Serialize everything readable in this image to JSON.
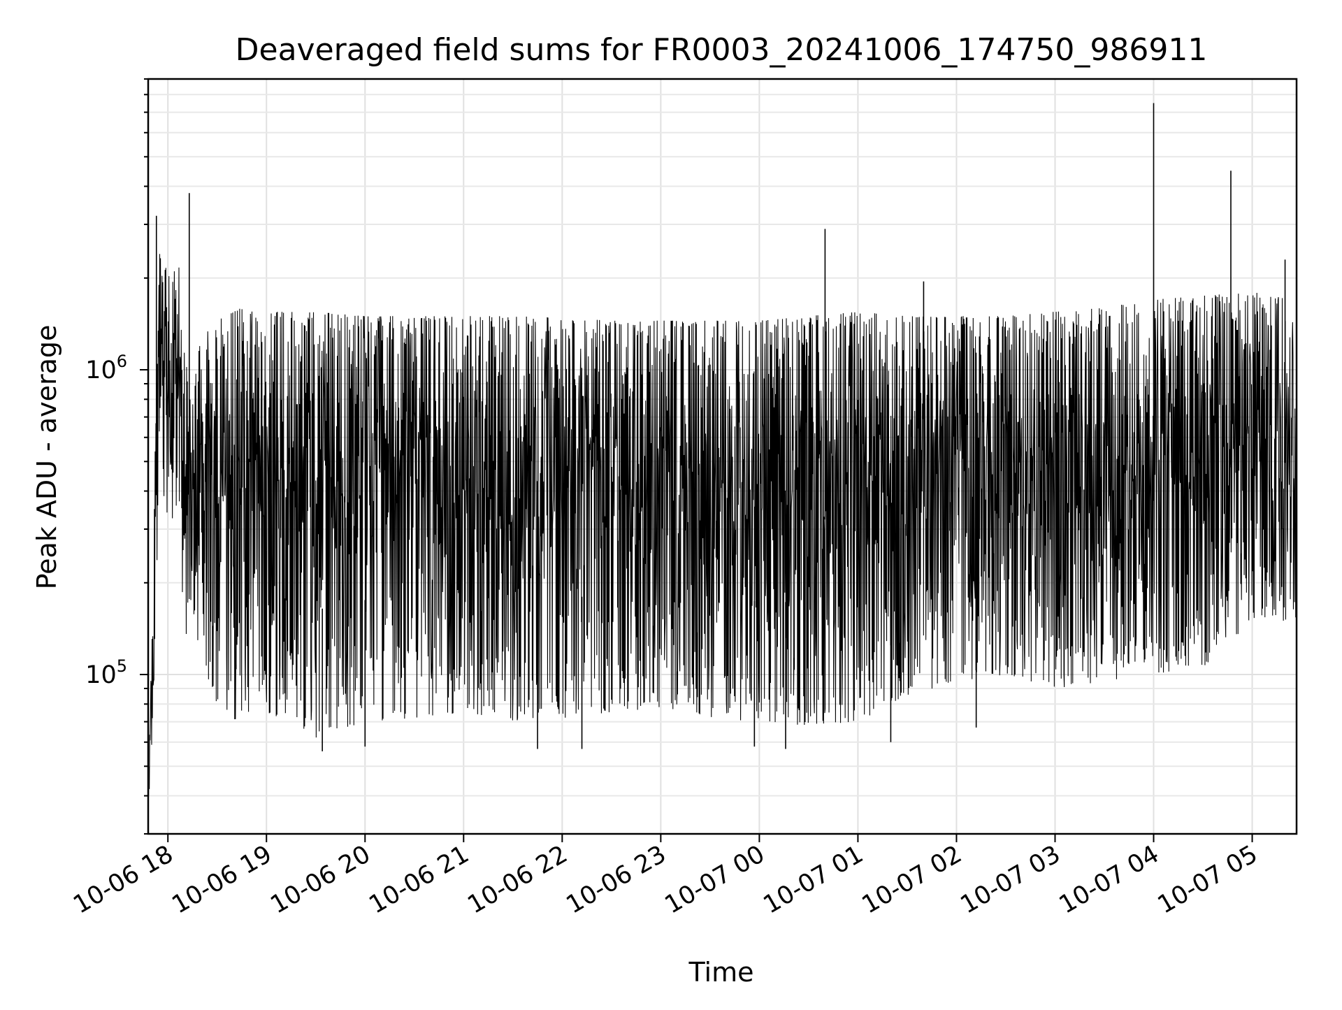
{
  "chart_data": {
    "type": "line",
    "title": "Deaveraged field sums for FR0003_20241006_174750_986911",
    "xlabel": "Time",
    "ylabel": "Peak ADU - average",
    "yscale": "log",
    "ylim": [
      30000,
      9000000
    ],
    "y_ticks": [
      {
        "value": 100000,
        "base": "10",
        "exp": "5"
      },
      {
        "value": 1000000,
        "base": "10",
        "exp": "6"
      }
    ],
    "xlim": [
      "2024-10-06 17:48",
      "2024-10-07 05:27"
    ],
    "x_ticks": [
      {
        "time": "2024-10-06 18:00",
        "label": "10-06 18"
      },
      {
        "time": "2024-10-06 19:00",
        "label": "10-06 19"
      },
      {
        "time": "2024-10-06 20:00",
        "label": "10-06 20"
      },
      {
        "time": "2024-10-06 21:00",
        "label": "10-06 21"
      },
      {
        "time": "2024-10-06 22:00",
        "label": "10-06 22"
      },
      {
        "time": "2024-10-06 23:00",
        "label": "10-06 23"
      },
      {
        "time": "2024-10-07 00:00",
        "label": "10-07 00"
      },
      {
        "time": "2024-10-07 01:00",
        "label": "10-07 01"
      },
      {
        "time": "2024-10-07 02:00",
        "label": "10-07 02"
      },
      {
        "time": "2024-10-07 03:00",
        "label": "10-07 03"
      },
      {
        "time": "2024-10-07 04:00",
        "label": "10-07 04"
      },
      {
        "time": "2024-10-07 05:00",
        "label": "10-07 05"
      }
    ],
    "grid": true,
    "series": [
      {
        "color": "#000000",
        "note_on_density": "dense oscillating signal; envelope samples listed as (time, high, low)",
        "envelope": [
          {
            "time": "2024-10-06 17:48",
            "high": 40000,
            "low": 35000
          },
          {
            "time": "2024-10-06 17:52",
            "high": 500000,
            "low": 90000
          },
          {
            "time": "2024-10-06 17:55",
            "high": 2400000,
            "low": 700000
          },
          {
            "time": "2024-10-06 17:58",
            "high": 2300000,
            "low": 350000
          },
          {
            "time": "2024-10-06 18:02",
            "high": 1900000,
            "low": 300000
          },
          {
            "time": "2024-10-06 18:06",
            "high": 2400000,
            "low": 350000
          },
          {
            "time": "2024-10-06 18:10",
            "high": 1400000,
            "low": 130000
          },
          {
            "time": "2024-10-06 18:15",
            "high": 800000,
            "low": 150000
          },
          {
            "time": "2024-10-06 18:20",
            "high": 1300000,
            "low": 110000
          },
          {
            "time": "2024-10-06 18:30",
            "high": 1450000,
            "low": 80000
          },
          {
            "time": "2024-10-06 18:45",
            "high": 1600000,
            "low": 68000
          },
          {
            "time": "2024-10-06 19:00",
            "high": 1550000,
            "low": 75000
          },
          {
            "time": "2024-10-06 19:30",
            "high": 1550000,
            "low": 62000
          },
          {
            "time": "2024-10-06 20:00",
            "high": 1500000,
            "low": 70000
          },
          {
            "time": "2024-10-06 20:30",
            "high": 1500000,
            "low": 72000
          },
          {
            "time": "2024-10-06 21:00",
            "high": 1500000,
            "low": 75000
          },
          {
            "time": "2024-10-06 21:30",
            "high": 1500000,
            "low": 70000
          },
          {
            "time": "2024-10-06 22:00",
            "high": 1480000,
            "low": 72000
          },
          {
            "time": "2024-10-06 22:30",
            "high": 1450000,
            "low": 75000
          },
          {
            "time": "2024-10-06 23:00",
            "high": 1450000,
            "low": 78000
          },
          {
            "time": "2024-10-06 23:30",
            "high": 1450000,
            "low": 72000
          },
          {
            "time": "2024-10-07 00:00",
            "high": 1450000,
            "low": 70000
          },
          {
            "time": "2024-10-07 00:30",
            "high": 1500000,
            "low": 68000
          },
          {
            "time": "2024-10-07 01:00",
            "high": 1550000,
            "low": 70000
          },
          {
            "time": "2024-10-07 01:30",
            "high": 1500000,
            "low": 85000
          },
          {
            "time": "2024-10-07 02:00",
            "high": 1500000,
            "low": 95000
          },
          {
            "time": "2024-10-07 02:30",
            "high": 1500000,
            "low": 100000
          },
          {
            "time": "2024-10-07 03:00",
            "high": 1550000,
            "low": 90000
          },
          {
            "time": "2024-10-07 03:30",
            "high": 1600000,
            "low": 95000
          },
          {
            "time": "2024-10-07 04:00",
            "high": 1700000,
            "low": 100000
          },
          {
            "time": "2024-10-07 04:30",
            "high": 1750000,
            "low": 105000
          },
          {
            "time": "2024-10-07 05:00",
            "high": 1800000,
            "low": 150000
          },
          {
            "time": "2024-10-07 05:27",
            "high": 1700000,
            "low": 150000
          }
        ],
        "spikes": [
          {
            "time": "2024-10-06 17:53",
            "value": 3200000
          },
          {
            "time": "2024-10-06 18:13",
            "value": 3800000
          },
          {
            "time": "2024-10-07 00:40",
            "value": 2900000
          },
          {
            "time": "2024-10-07 01:40",
            "value": 1950000
          },
          {
            "time": "2024-10-07 04:00",
            "value": 7500000
          },
          {
            "time": "2024-10-07 04:47",
            "value": 4500000
          },
          {
            "time": "2024-10-07 05:20",
            "value": 2300000
          }
        ],
        "dips": [
          {
            "time": "2024-10-06 19:34",
            "value": 56000
          },
          {
            "time": "2024-10-06 20:00",
            "value": 58000
          },
          {
            "time": "2024-10-06 21:45",
            "value": 57000
          },
          {
            "time": "2024-10-06 22:12",
            "value": 57000
          },
          {
            "time": "2024-10-06 23:57",
            "value": 58000
          },
          {
            "time": "2024-10-07 00:16",
            "value": 57000
          },
          {
            "time": "2024-10-07 01:20",
            "value": 60000
          },
          {
            "time": "2024-10-07 02:12",
            "value": 67000
          }
        ]
      }
    ]
  }
}
